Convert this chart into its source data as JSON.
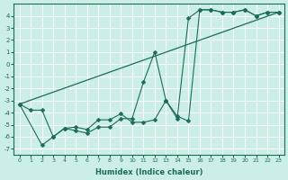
{
  "xlabel": "Humidex (Indice chaleur)",
  "bg_color": "#cceee8",
  "grid_color": "#ffffff",
  "line_color": "#1a6b5a",
  "xlim": [
    -0.5,
    23.5
  ],
  "ylim": [
    -7.5,
    5.0
  ],
  "xticks": [
    0,
    1,
    2,
    3,
    4,
    5,
    6,
    7,
    8,
    9,
    10,
    11,
    12,
    13,
    14,
    15,
    16,
    17,
    18,
    19,
    20,
    21,
    22,
    23
  ],
  "yticks": [
    -7,
    -6,
    -5,
    -4,
    -3,
    -2,
    -1,
    0,
    1,
    2,
    3,
    4
  ],
  "series_trend_x": [
    0,
    23
  ],
  "series_trend_y": [
    -3.3,
    4.3
  ],
  "series1_x": [
    0,
    1,
    2,
    3,
    4,
    5,
    6,
    7,
    8,
    9,
    10,
    11,
    12,
    13,
    14,
    15,
    16,
    17,
    18,
    19,
    20,
    21,
    22,
    23
  ],
  "series1_y": [
    -3.3,
    -3.8,
    -3.8,
    -6.0,
    -5.3,
    -5.2,
    -5.4,
    -4.6,
    -4.6,
    -4.1,
    -4.8,
    -4.8,
    -4.6,
    -3.0,
    -4.5,
    3.8,
    4.5,
    4.5,
    4.3,
    4.3,
    4.5,
    4.0,
    4.3,
    4.3
  ],
  "series2_x": [
    0,
    2,
    3,
    4,
    5,
    6,
    7,
    8,
    9,
    10,
    11,
    12,
    13,
    14,
    15,
    16,
    17,
    18,
    19,
    20,
    21,
    22,
    23
  ],
  "series2_y": [
    -3.3,
    -6.7,
    -6.0,
    -5.3,
    -5.5,
    -5.7,
    -5.2,
    -5.2,
    -4.5,
    -4.5,
    -1.5,
    1.0,
    -3.0,
    -4.3,
    -4.7,
    4.5,
    4.5,
    4.3,
    4.3,
    4.5,
    4.0,
    4.3,
    4.3
  ]
}
